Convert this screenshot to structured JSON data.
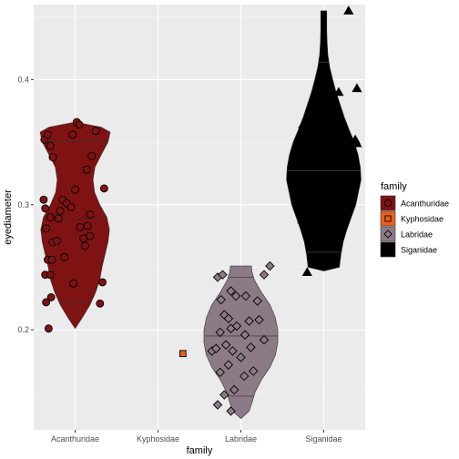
{
  "chart_data": {
    "type": "violin",
    "xlabel": "family",
    "ylabel": "eyediameter",
    "categories": [
      "Acanthuridae",
      "Kyphosidae",
      "Labridae",
      "Siganidae"
    ],
    "ylim": [
      0.12,
      0.46
    ],
    "yticks": [
      0.2,
      0.3,
      0.4
    ],
    "ytick_labels": [
      "0.2",
      "0.3",
      "0.4"
    ],
    "grid": true,
    "legend": {
      "title": "family",
      "position": "right",
      "entries": [
        {
          "label": "Acanthuridae",
          "fill": "#7f1212",
          "shape": "circle"
        },
        {
          "label": "Kyphosidae",
          "fill": "#e8601c",
          "shape": "square"
        },
        {
          "label": "Labridae",
          "fill": "#8c7b86",
          "shape": "diamond"
        },
        {
          "label": "Siganidae",
          "fill": "#000000",
          "shape": "triangle"
        }
      ]
    },
    "series": [
      {
        "name": "Acanthuridae",
        "fill": "#7f1212",
        "shape": "circle",
        "violin": {
          "min": 0.201,
          "max": 0.366,
          "q1": 0.222,
          "median": 0.289,
          "q3": 0.351,
          "profile": [
            [
              0.201,
              0.0
            ],
            [
              0.21,
              0.2
            ],
            [
              0.22,
              0.4
            ],
            [
              0.23,
              0.55
            ],
            [
              0.24,
              0.66
            ],
            [
              0.25,
              0.72
            ],
            [
              0.26,
              0.8
            ],
            [
              0.27,
              0.88
            ],
            [
              0.28,
              0.92
            ],
            [
              0.29,
              0.85
            ],
            [
              0.3,
              0.66
            ],
            [
              0.31,
              0.52
            ],
            [
              0.32,
              0.48
            ],
            [
              0.33,
              0.53
            ],
            [
              0.34,
              0.7
            ],
            [
              0.35,
              0.88
            ],
            [
              0.358,
              0.94
            ],
            [
              0.362,
              0.7
            ],
            [
              0.366,
              0.0
            ]
          ]
        },
        "points": [
          {
            "dx": -0.37,
            "y": 0.352
          },
          {
            "dx": -0.33,
            "y": 0.356
          },
          {
            "dx": -0.3,
            "y": 0.347
          },
          {
            "dx": -0.27,
            "y": 0.338
          },
          {
            "dx": -0.38,
            "y": 0.304
          },
          {
            "dx": -0.36,
            "y": 0.297
          },
          {
            "dx": -0.35,
            "y": 0.281
          },
          {
            "dx": -0.3,
            "y": 0.29
          },
          {
            "dx": -0.27,
            "y": 0.27
          },
          {
            "dx": -0.33,
            "y": 0.256
          },
          {
            "dx": -0.28,
            "y": 0.256
          },
          {
            "dx": -0.36,
            "y": 0.244
          },
          {
            "dx": -0.3,
            "y": 0.244
          },
          {
            "dx": -0.35,
            "y": 0.222
          },
          {
            "dx": -0.29,
            "y": 0.226
          },
          {
            "dx": -0.32,
            "y": 0.201
          },
          {
            "dx": -0.15,
            "y": 0.304
          },
          {
            "dx": -0.18,
            "y": 0.295
          },
          {
            "dx": -0.2,
            "y": 0.289
          },
          {
            "dx": -0.22,
            "y": 0.271
          },
          {
            "dx": -0.1,
            "y": 0.301
          },
          {
            "dx": -0.05,
            "y": 0.298
          },
          {
            "dx": -0.13,
            "y": 0.258
          },
          {
            "dx": -0.02,
            "y": 0.237
          },
          {
            "dx": 0.02,
            "y": 0.366
          },
          {
            "dx": 0.05,
            "y": 0.364
          },
          {
            "dx": -0.03,
            "y": 0.356
          },
          {
            "dx": 0.0,
            "y": 0.312
          },
          {
            "dx": 0.06,
            "y": 0.282
          },
          {
            "dx": 0.1,
            "y": 0.273
          },
          {
            "dx": 0.12,
            "y": 0.267
          },
          {
            "dx": 0.15,
            "y": 0.283
          },
          {
            "dx": 0.18,
            "y": 0.292
          },
          {
            "dx": 0.14,
            "y": 0.328
          },
          {
            "dx": 0.2,
            "y": 0.339
          },
          {
            "dx": 0.25,
            "y": 0.359
          },
          {
            "dx": 0.35,
            "y": 0.313
          },
          {
            "dx": 0.33,
            "y": 0.238
          },
          {
            "dx": 0.3,
            "y": 0.221
          },
          {
            "dx": 0.18,
            "y": 0.275
          }
        ]
      },
      {
        "name": "Kyphosidae",
        "fill": "#e8601c",
        "shape": "square",
        "violin": null,
        "points": [
          {
            "dx": 0.3,
            "y": 0.181
          }
        ]
      },
      {
        "name": "Labridae",
        "fill": "#8c7b86",
        "shape": "diamond",
        "violin": {
          "min": 0.129,
          "max": 0.251,
          "q1": 0.147,
          "median": 0.195,
          "q3": 0.242,
          "profile": [
            [
              0.129,
              0.0
            ],
            [
              0.135,
              0.22
            ],
            [
              0.142,
              0.3
            ],
            [
              0.15,
              0.38
            ],
            [
              0.16,
              0.55
            ],
            [
              0.17,
              0.78
            ],
            [
              0.18,
              0.93
            ],
            [
              0.19,
              0.99
            ],
            [
              0.2,
              0.99
            ],
            [
              0.21,
              0.92
            ],
            [
              0.22,
              0.78
            ],
            [
              0.23,
              0.55
            ],
            [
              0.24,
              0.36
            ],
            [
              0.246,
              0.3
            ],
            [
              0.251,
              0.28
            ]
          ]
        },
        "points": [
          {
            "dx": -0.28,
            "y": 0.242
          },
          {
            "dx": -0.22,
            "y": 0.244
          },
          {
            "dx": -0.24,
            "y": 0.224
          },
          {
            "dx": -0.12,
            "y": 0.231
          },
          {
            "dx": -0.06,
            "y": 0.227
          },
          {
            "dx": 0.06,
            "y": 0.227
          },
          {
            "dx": 0.2,
            "y": 0.223
          },
          {
            "dx": 0.35,
            "y": 0.251
          },
          {
            "dx": 0.28,
            "y": 0.244
          },
          {
            "dx": -0.2,
            "y": 0.212
          },
          {
            "dx": -0.15,
            "y": 0.209
          },
          {
            "dx": -0.12,
            "y": 0.201
          },
          {
            "dx": -0.25,
            "y": 0.198
          },
          {
            "dx": -0.05,
            "y": 0.203
          },
          {
            "dx": 0.1,
            "y": 0.207
          },
          {
            "dx": 0.22,
            "y": 0.208
          },
          {
            "dx": 0.05,
            "y": 0.196
          },
          {
            "dx": -0.35,
            "y": 0.183
          },
          {
            "dx": -0.3,
            "y": 0.185
          },
          {
            "dx": -0.18,
            "y": 0.188
          },
          {
            "dx": -0.1,
            "y": 0.183
          },
          {
            "dx": 0.12,
            "y": 0.186
          },
          {
            "dx": 0.28,
            "y": 0.192
          },
          {
            "dx": 0.0,
            "y": 0.178
          },
          {
            "dx": -0.15,
            "y": 0.172
          },
          {
            "dx": -0.25,
            "y": 0.166
          },
          {
            "dx": 0.15,
            "y": 0.167
          },
          {
            "dx": 0.04,
            "y": 0.163
          },
          {
            "dx": -0.08,
            "y": 0.152
          },
          {
            "dx": -0.28,
            "y": 0.14
          },
          {
            "dx": -0.2,
            "y": 0.148
          },
          {
            "dx": -0.12,
            "y": 0.135
          }
        ]
      },
      {
        "name": "Siganidae",
        "fill": "#000000",
        "shape": "triangle",
        "violin": {
          "min": 0.247,
          "max": 0.455,
          "q1": 0.262,
          "median": 0.327,
          "q3": 0.414,
          "profile": [
            [
              0.247,
              0.0
            ],
            [
              0.25,
              0.42
            ],
            [
              0.26,
              0.46
            ],
            [
              0.27,
              0.52
            ],
            [
              0.28,
              0.62
            ],
            [
              0.29,
              0.74
            ],
            [
              0.3,
              0.86
            ],
            [
              0.31,
              0.93
            ],
            [
              0.32,
              1.0
            ],
            [
              0.33,
              0.98
            ],
            [
              0.34,
              0.92
            ],
            [
              0.35,
              0.82
            ],
            [
              0.36,
              0.68
            ],
            [
              0.37,
              0.55
            ],
            [
              0.38,
              0.44
            ],
            [
              0.39,
              0.33
            ],
            [
              0.4,
              0.24
            ],
            [
              0.41,
              0.16
            ],
            [
              0.42,
              0.11
            ],
            [
              0.43,
              0.09
            ],
            [
              0.44,
              0.08
            ],
            [
              0.455,
              0.08
            ]
          ]
        },
        "points": [
          {
            "dx": 0.3,
            "y": 0.455
          },
          {
            "dx": 0.4,
            "y": 0.393
          },
          {
            "dx": 0.18,
            "y": 0.39
          },
          {
            "dx": -0.25,
            "y": 0.364
          },
          {
            "dx": -0.2,
            "y": 0.352
          },
          {
            "dx": 0.38,
            "y": 0.352
          },
          {
            "dx": 0.4,
            "y": 0.349
          },
          {
            "dx": 0.36,
            "y": 0.334
          },
          {
            "dx": 0.36,
            "y": 0.322
          },
          {
            "dx": -0.26,
            "y": 0.302
          },
          {
            "dx": 0.25,
            "y": 0.299
          },
          {
            "dx": -0.26,
            "y": 0.288
          },
          {
            "dx": -0.2,
            "y": 0.246
          }
        ]
      }
    ]
  }
}
